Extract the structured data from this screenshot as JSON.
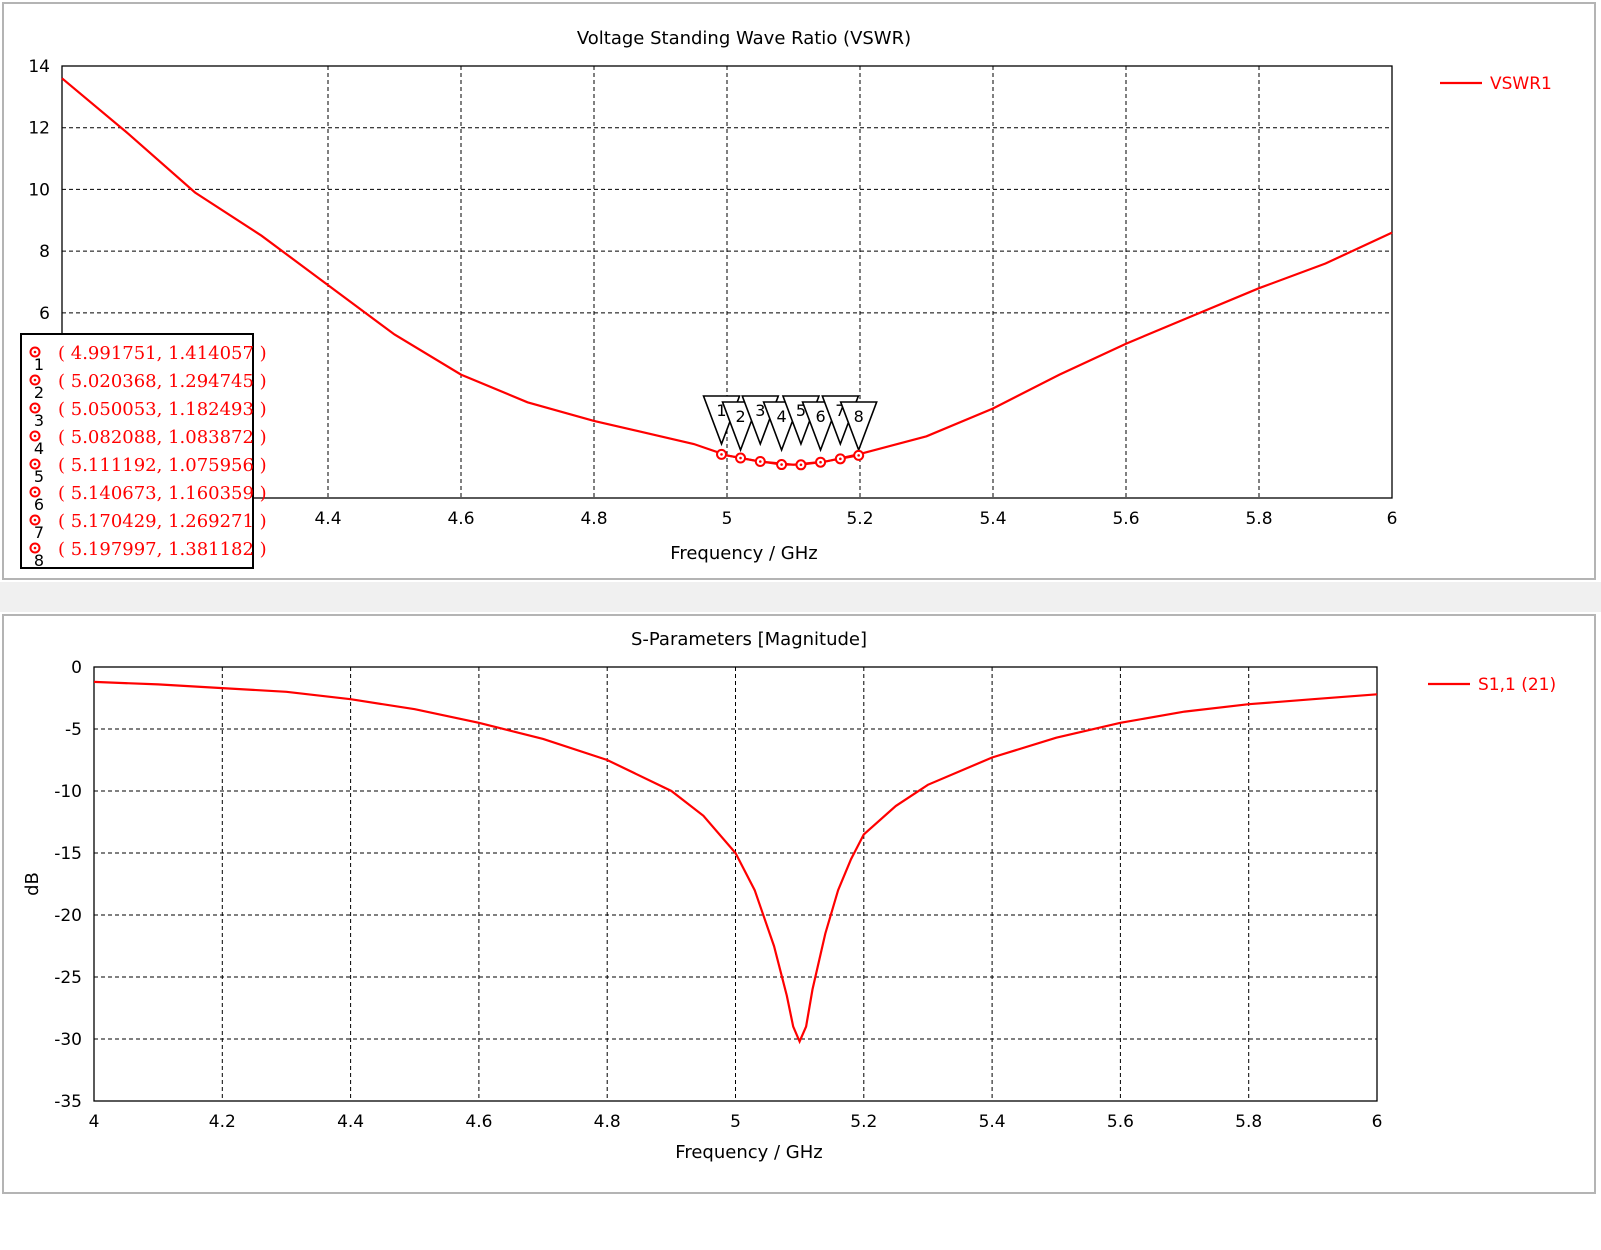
{
  "colors": {
    "curve": "#ff0000",
    "grid": "#000000",
    "frame": "#b4b4b4"
  },
  "chart_data": [
    {
      "type": "line",
      "title": "Voltage Standing Wave Ratio (VSWR)",
      "xlabel": "Frequency / GHz",
      "ylabel": "",
      "xlim": [
        4,
        6
      ],
      "ylim": [
        0,
        14
      ],
      "xticks": [
        "4.4",
        "4.6",
        "4.8",
        "5",
        "5.2",
        "5.4",
        "5.6",
        "5.8",
        "6"
      ],
      "yticks": [
        "6",
        "8",
        "10",
        "12",
        "14"
      ],
      "grid": true,
      "legend_position": "right",
      "series": [
        {
          "name": "VSWR1",
          "x": [
            4.0,
            4.1,
            4.2,
            4.3,
            4.4,
            4.5,
            4.6,
            4.7,
            4.8,
            4.9,
            4.95,
            5.0,
            5.05,
            5.1,
            5.15,
            5.2,
            5.3,
            5.4,
            5.5,
            5.6,
            5.7,
            5.8,
            5.9,
            6.0
          ],
          "y": [
            13.6,
            11.8,
            9.9,
            8.5,
            6.9,
            5.3,
            4.0,
            3.1,
            2.5,
            2.0,
            1.75,
            1.38,
            1.18,
            1.08,
            1.19,
            1.43,
            2.0,
            2.9,
            4.0,
            5.0,
            5.9,
            6.8,
            7.6,
            8.6
          ]
        }
      ],
      "markers": [
        {
          "id": "1",
          "label": "( 4.991751, 1.414057 )",
          "x": 4.991751,
          "y": 1.414057
        },
        {
          "id": "2",
          "label": "( 5.020368, 1.294745 )",
          "x": 5.020368,
          "y": 1.294745
        },
        {
          "id": "3",
          "label": "( 5.050053, 1.182493 )",
          "x": 5.050053,
          "y": 1.182493
        },
        {
          "id": "4",
          "label": "( 5.082088, 1.083872 )",
          "x": 5.082088,
          "y": 1.083872
        },
        {
          "id": "5",
          "label": "( 5.111192, 1.075956 )",
          "x": 5.111192,
          "y": 1.075956
        },
        {
          "id": "6",
          "label": "( 5.140673, 1.160359 )",
          "x": 5.140673,
          "y": 1.160359
        },
        {
          "id": "7",
          "label": "( 5.170429, 1.269271 )",
          "x": 5.170429,
          "y": 1.269271
        },
        {
          "id": "8",
          "label": "( 5.197997, 1.381182 )",
          "x": 5.197997,
          "y": 1.381182
        }
      ]
    },
    {
      "type": "line",
      "title": "S-Parameters [Magnitude]",
      "xlabel": "Frequency / GHz",
      "ylabel": "dB",
      "xlim": [
        4,
        6
      ],
      "ylim": [
        -35,
        0
      ],
      "xticks": [
        "4",
        "4.2",
        "4.4",
        "4.6",
        "4.8",
        "5",
        "5.2",
        "5.4",
        "5.6",
        "5.8",
        "6"
      ],
      "yticks": [
        "0",
        "-5",
        "-10",
        "-15",
        "-20",
        "-25",
        "-30",
        "-35"
      ],
      "grid": true,
      "legend_position": "right",
      "series": [
        {
          "name": "S1,1 (21)",
          "x": [
            4.0,
            4.1,
            4.2,
            4.3,
            4.4,
            4.5,
            4.6,
            4.7,
            4.8,
            4.9,
            4.95,
            5.0,
            5.03,
            5.06,
            5.08,
            5.09,
            5.1,
            5.11,
            5.12,
            5.14,
            5.16,
            5.18,
            5.2,
            5.25,
            5.3,
            5.4,
            5.5,
            5.6,
            5.7,
            5.8,
            5.9,
            6.0
          ],
          "y": [
            -1.2,
            -1.4,
            -1.7,
            -2.0,
            -2.6,
            -3.4,
            -4.5,
            -5.8,
            -7.5,
            -10.0,
            -12.0,
            -15.0,
            -18.0,
            -22.5,
            -26.5,
            -29.0,
            -30.2,
            -29.0,
            -26.0,
            -21.5,
            -18.0,
            -15.5,
            -13.5,
            -11.2,
            -9.5,
            -7.3,
            -5.7,
            -4.5,
            -3.6,
            -3.0,
            -2.6,
            -2.2
          ]
        }
      ]
    }
  ]
}
